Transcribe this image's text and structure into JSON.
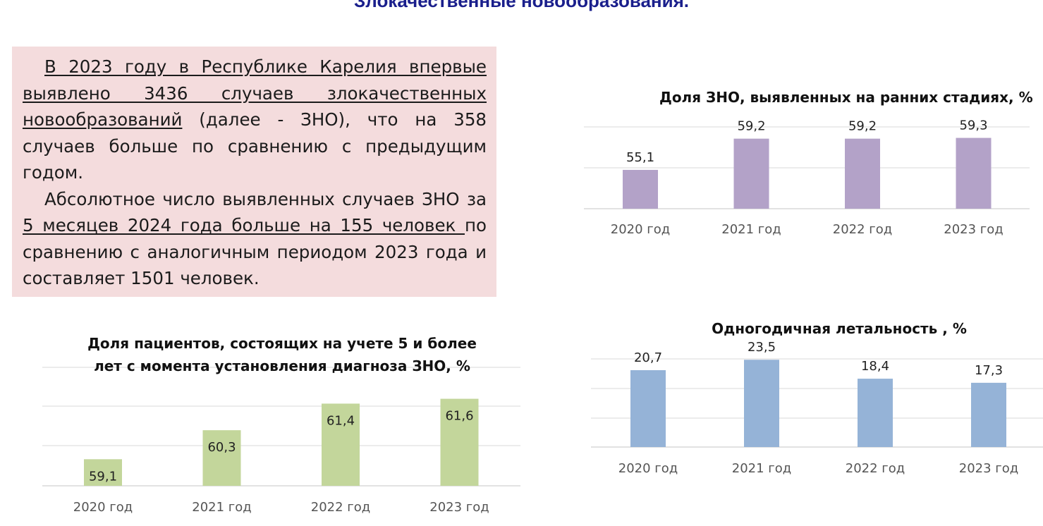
{
  "slide": {
    "title": "Злокачественные новообразования."
  },
  "text_box": {
    "p1_u1": "В 2023 году в Республике Карелия впервые выявлено 3436 случаев злокачественных новообразований",
    "p1_rest": " (далее - ЗНО), что на 358 случаев больше по сравнению с предыдущим годом.",
    "p2_a": "Абсолютное число выявленных случаев ЗНО за ",
    "p2_u": "5 месяцев 2024 года больше на 155 человек ",
    "p2_b": "по сравнению с аналогичным периодом 2023 года и составляет 1501 человек."
  },
  "chart_data": [
    {
      "id": "early-stage",
      "type": "bar",
      "title": "Доля ЗНО, выявленных на ранних стадиях, %",
      "categories": [
        "2020 год",
        "2021 год",
        "2022 год",
        "2023 год"
      ],
      "values": [
        55.1,
        59.2,
        59.2,
        59.3
      ],
      "labels": [
        "55,1",
        "59,2",
        "59,2",
        "59,3"
      ],
      "color": "#b3a2c8",
      "grid": true,
      "ylim": [
        50,
        60
      ]
    },
    {
      "id": "mortality",
      "type": "bar",
      "title": "Одногодичная летальность , %",
      "categories": [
        "2020 год",
        "2021 год",
        "2022 год",
        "2023 год"
      ],
      "values": [
        20.7,
        23.5,
        18.4,
        17.3
      ],
      "labels": [
        "20,7",
        "23,5",
        "18,4",
        "17,3"
      ],
      "color": "#95b3d7",
      "grid": true,
      "ylim": [
        0,
        30
      ]
    },
    {
      "id": "five-year",
      "type": "bar",
      "title": "Доля пациентов, состоящих на учете 5 и более лет с момента установления диагноза ЗНО, %",
      "title_lines": [
        "Доля пациентов, состоящих на учете 5 и более",
        "лет с момента установления диагноза ЗНО, %"
      ],
      "categories": [
        "2020 год",
        "2021 год",
        "2022 год",
        "2023 год"
      ],
      "values": [
        59.1,
        60.3,
        61.4,
        61.6
      ],
      "labels": [
        "59,1",
        "60,3",
        "61,4",
        "61,6"
      ],
      "color": "#c3d69b",
      "grid": true,
      "ylim": [
        58,
        61.5
      ]
    }
  ]
}
